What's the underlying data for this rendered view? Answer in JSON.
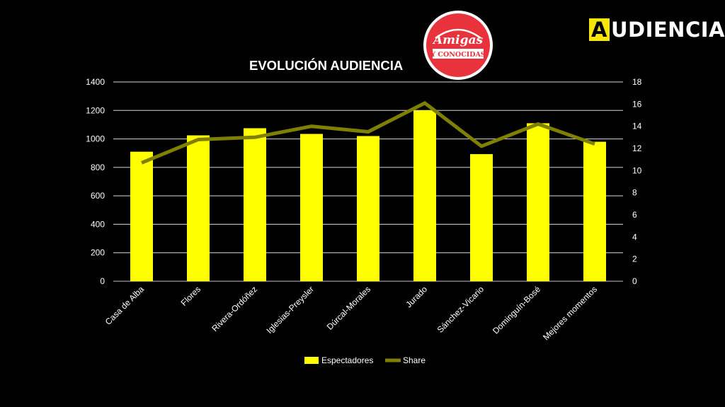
{
  "brand": {
    "first_letter": "A",
    "rest": "UDIENCIAS",
    "accent_color": "#f5e50a"
  },
  "logo": {
    "line1": "Amigas",
    "line2": "Y CONOCIDAS",
    "color": "#e8323c"
  },
  "chart_data": {
    "type": "bar",
    "title": "EVOLUCIÓN AUDIENCIA",
    "categories": [
      "Casa de Alba",
      "Flores",
      "Rivera-Ordóñez",
      "Iglesias-Preysler",
      "Dúrcal-Morales",
      "Jurado",
      "Sánchez-Vicario",
      "Dominguín-Bosé",
      "Mejores momentos"
    ],
    "series": [
      {
        "name": "Espectadores",
        "type": "bar",
        "axis": "left",
        "color": "#ffff00",
        "values": [
          910,
          1025,
          1075,
          1035,
          1020,
          1200,
          893,
          1110,
          980
        ]
      },
      {
        "name": "Share",
        "type": "line",
        "axis": "right",
        "color": "#808000",
        "values": [
          10.7,
          12.8,
          13.0,
          14.0,
          13.5,
          16.1,
          12.2,
          14.2,
          12.4
        ]
      }
    ],
    "y_left": {
      "min": 0,
      "max": 1400,
      "ticks": [
        0,
        200,
        400,
        600,
        800,
        1000,
        1200,
        1400
      ]
    },
    "y_right": {
      "min": 0,
      "max": 18,
      "ticks": [
        0,
        2,
        4,
        6,
        8,
        10,
        12,
        14,
        16,
        18
      ]
    },
    "grid": true,
    "legend_position": "bottom"
  }
}
